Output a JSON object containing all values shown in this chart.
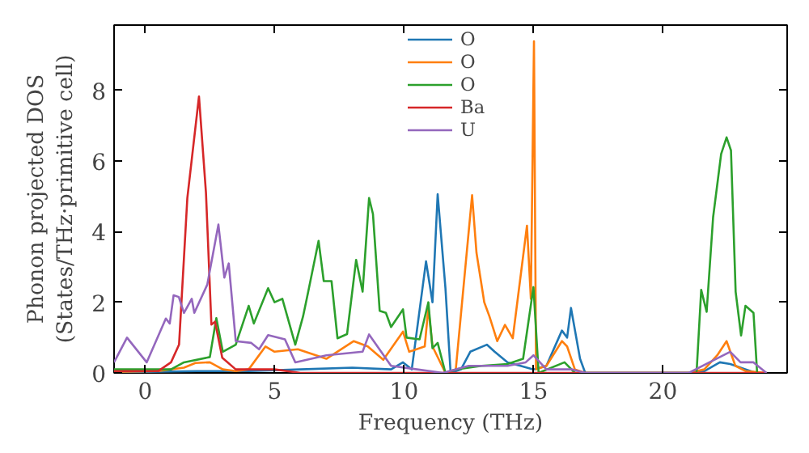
{
  "chart_data": {
    "type": "line",
    "xlabel": "Frequency (THz)",
    "ylabel": "Phonon projected DOS\n(States/THz·primitive cell)",
    "xlim": [
      -1.2,
      24.8
    ],
    "ylim": [
      0,
      9.85
    ],
    "xticks": [
      0,
      5,
      10,
      15,
      20
    ],
    "yticks": [
      0,
      2,
      4,
      6,
      8
    ],
    "grid": false,
    "legend": "top",
    "line_style": "solid",
    "marker": "none",
    "series": [
      {
        "name": "O",
        "color": "#1f77b4",
        "x": [
          -1.2,
          0,
          2,
          4,
          6,
          8,
          9.5,
          9.96,
          10.3,
          10.85,
          11.1,
          11.3,
          11.6,
          11.8,
          12.2,
          12.56,
          13.2,
          13.5,
          14,
          14.5,
          15,
          15.5,
          16.1,
          16.3,
          16.45,
          16.8,
          17.0,
          21.0,
          21.6,
          22.2,
          22.6,
          23.2,
          23.6,
          24.0
        ],
        "values": [
          0.02,
          0.03,
          0.05,
          0.05,
          0.1,
          0.15,
          0.1,
          0.3,
          0.1,
          3.16,
          2.0,
          5.06,
          2.4,
          0,
          0.1,
          0.6,
          0.8,
          0.6,
          0.3,
          0.2,
          0.1,
          0.2,
          1.2,
          1.0,
          1.84,
          0.4,
          0,
          0,
          0.05,
          0.3,
          0.25,
          0.1,
          0,
          0
        ]
      },
      {
        "name": "O",
        "color": "#ff7f0e",
        "x": [
          -1.2,
          0.5,
          1.5,
          1.94,
          2.5,
          3.0,
          3.5,
          4.0,
          4.65,
          5.0,
          5.9,
          7.0,
          8.06,
          8.6,
          9.2,
          9.96,
          10.2,
          10.8,
          10.94,
          11.1,
          11.6,
          12.0,
          12.63,
          12.8,
          13.1,
          13.3,
          13.6,
          13.9,
          14.2,
          14.75,
          14.9,
          15.02,
          15.1,
          15.5,
          16.1,
          16.3,
          16.6,
          17.0,
          21.0,
          21.6,
          22.1,
          22.46,
          22.8,
          23.2,
          24.0
        ],
        "values": [
          0.03,
          0.05,
          0.15,
          0.28,
          0.3,
          0.1,
          0.05,
          0.1,
          0.75,
          0.6,
          0.67,
          0.4,
          0.9,
          0.75,
          0.37,
          1.17,
          0.6,
          0.75,
          1.84,
          0.75,
          0,
          0.1,
          5.03,
          3.4,
          2.0,
          1.6,
          0.9,
          1.36,
          0.98,
          4.17,
          2.1,
          9.39,
          0.1,
          0.2,
          0.9,
          0.75,
          0.1,
          0,
          0,
          0.1,
          0.5,
          0.9,
          0.2,
          0.05,
          0
        ]
      },
      {
        "name": "O",
        "color": "#2ca02c",
        "x": [
          -1.2,
          1.0,
          1.5,
          2.5,
          2.75,
          3.0,
          3.5,
          4.0,
          4.2,
          4.75,
          5.0,
          5.3,
          5.8,
          6.1,
          6.3,
          6.7,
          6.9,
          7.2,
          7.43,
          7.8,
          8.15,
          8.4,
          8.65,
          8.8,
          9.06,
          9.3,
          9.5,
          9.96,
          10.1,
          10.6,
          10.94,
          11.1,
          11.3,
          11.6,
          12.0,
          13.0,
          14.0,
          14.6,
          15.0,
          15.2,
          16.2,
          16.6,
          21.3,
          21.48,
          21.69,
          21.94,
          22.25,
          22.46,
          22.63,
          22.81,
          23.02,
          23.19,
          23.5,
          23.64
        ],
        "values": [
          0.1,
          0.1,
          0.3,
          0.45,
          1.55,
          0.6,
          0.8,
          1.9,
          1.4,
          2.4,
          2.0,
          2.1,
          0.8,
          1.6,
          2.3,
          3.74,
          2.6,
          2.6,
          0.98,
          1.1,
          3.2,
          2.3,
          4.95,
          4.5,
          1.76,
          1.7,
          1.3,
          1.8,
          1.0,
          0.95,
          2.0,
          0.7,
          0.85,
          0,
          0.1,
          0.2,
          0.25,
          0.4,
          2.43,
          0,
          0.3,
          0,
          0,
          2.35,
          1.73,
          4.41,
          6.2,
          6.67,
          6.3,
          2.3,
          1.06,
          1.9,
          1.7,
          0
        ]
      },
      {
        "name": "Ba",
        "color": "#d62728",
        "x": [
          -1.2,
          0.5,
          1.0,
          1.31,
          1.63,
          2.08,
          2.35,
          2.56,
          2.7,
          2.98,
          3.5,
          5.0,
          6.0,
          24.0
        ],
        "values": [
          0.05,
          0.05,
          0.3,
          0.8,
          4.95,
          7.83,
          5.1,
          1.37,
          1.45,
          0.43,
          0.1,
          0.1,
          0,
          0
        ]
      },
      {
        "name": "U",
        "color": "#9467bd",
        "x": [
          -1.2,
          -0.7,
          0.06,
          0.8,
          0.95,
          1.1,
          1.3,
          1.5,
          1.8,
          1.9,
          2.4,
          2.83,
          3.06,
          3.23,
          3.5,
          4.1,
          4.4,
          4.75,
          5.4,
          5.8,
          7.0,
          8.4,
          8.65,
          9.5,
          10.5,
          11.5,
          12.5,
          14.0,
          14.7,
          15.0,
          15.5,
          16.5,
          17.0,
          21.0,
          21.8,
          22.6,
          23.0,
          23.5,
          24.0
        ],
        "values": [
          0.3,
          1.0,
          0.3,
          1.54,
          1.4,
          2.2,
          2.15,
          1.7,
          2.1,
          1.7,
          2.5,
          4.2,
          2.7,
          3.1,
          0.9,
          0.85,
          0.67,
          1.07,
          0.95,
          0.3,
          0.5,
          0.6,
          1.09,
          0.2,
          0.1,
          0,
          0.2,
          0.2,
          0.3,
          0.5,
          0.1,
          0.1,
          0,
          0,
          0.3,
          0.6,
          0.3,
          0.3,
          0
        ]
      }
    ]
  }
}
